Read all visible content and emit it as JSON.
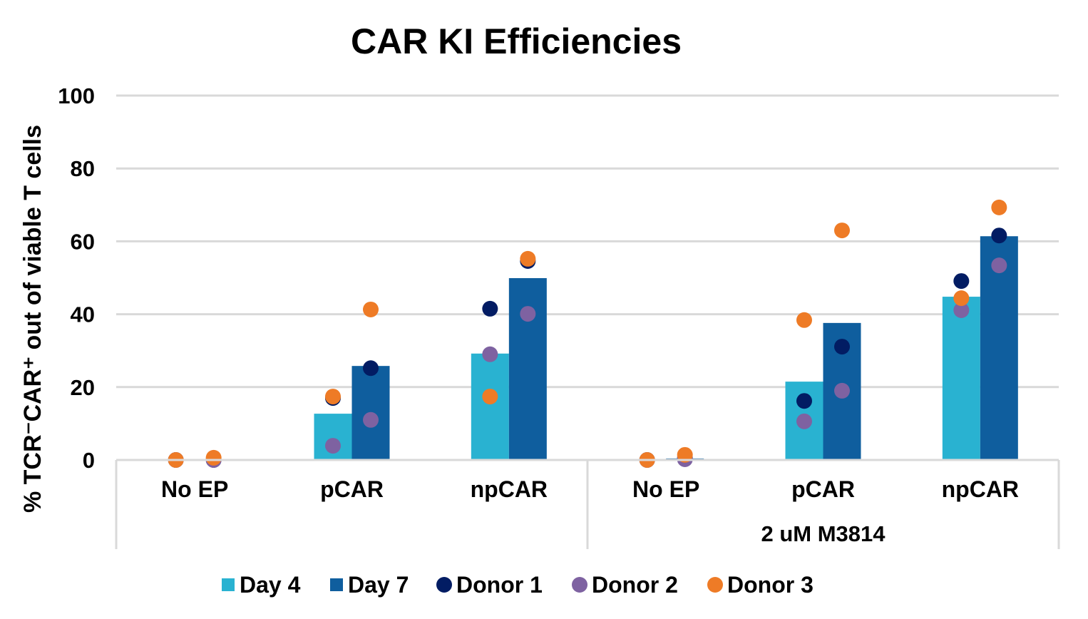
{
  "chart_data": {
    "type": "bar",
    "title": "CAR KI Efficiencies",
    "ylabel": "% TCR⁻CAR⁺ out of viable T cells",
    "xlabel": "",
    "ylim": [
      0,
      100
    ],
    "yticks": [
      0,
      20,
      40,
      60,
      80,
      100
    ],
    "grid": true,
    "legend_position": "bottom",
    "categories": [
      "No EP",
      "pCAR",
      "npCAR",
      "No EP",
      "pCAR",
      "npCAR"
    ],
    "groups": [
      {
        "label": "",
        "categories": [
          0,
          1,
          2
        ]
      },
      {
        "label": "2 uM M3814",
        "categories": [
          3,
          4,
          5
        ]
      }
    ],
    "series": [
      {
        "name": "Day 4",
        "kind": "bar",
        "color": "#29B2D1",
        "values": [
          0,
          12.7,
          29.2,
          0,
          21.5,
          44.8
        ]
      },
      {
        "name": "Day 7",
        "kind": "bar",
        "color": "#0F5E9E",
        "values": [
          0,
          25.8,
          49.9,
          0.4,
          37.6,
          61.4
        ]
      }
    ],
    "points": [
      {
        "name": "Donor 1",
        "color": "#021C63",
        "day4": [
          0,
          17.0,
          41.5,
          0,
          16.2,
          49.1
        ],
        "day7": [
          0,
          25.2,
          54.6,
          0.5,
          31.1,
          61.6
        ]
      },
      {
        "name": "Donor 2",
        "color": "#7E62A1",
        "day4": [
          0,
          3.9,
          29.0,
          0,
          10.6,
          41.1
        ],
        "day7": [
          0,
          11.0,
          40.1,
          0.2,
          19.0,
          53.4
        ]
      },
      {
        "name": "Donor 3",
        "color": "#EE7B26",
        "day4": [
          0,
          17.4,
          17.4,
          0,
          38.4,
          44.4
        ],
        "day7": [
          0.6,
          41.3,
          55.2,
          1.4,
          63.0,
          69.3
        ]
      }
    ],
    "legend": [
      "Day 4",
      "Day 7",
      "Donor 1",
      "Donor 2",
      "Donor 3"
    ]
  }
}
